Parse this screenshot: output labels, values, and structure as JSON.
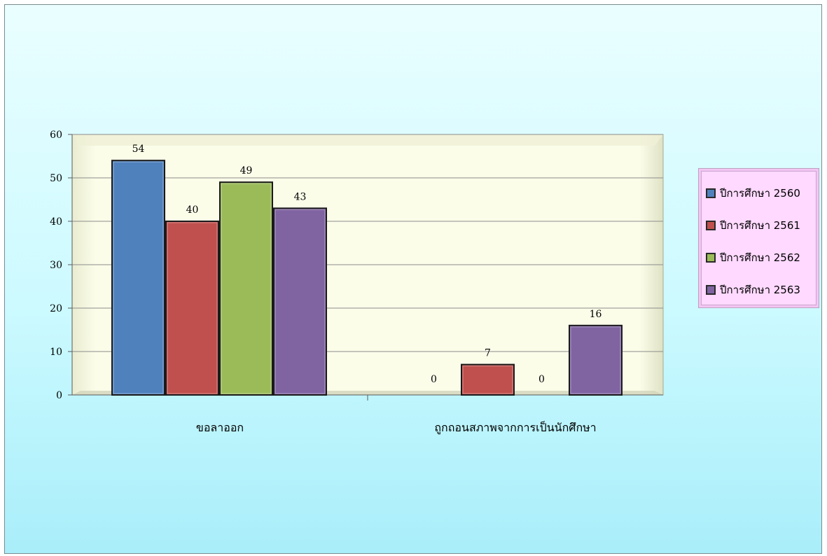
{
  "chart_data": {
    "type": "bar",
    "categories": [
      "ขอลาออก",
      "ถูกถอนสภาพจากการเป็นนักศึกษา"
    ],
    "series": [
      {
        "name": "ปีการศึกษา 2560",
        "values": [
          54,
          0
        ],
        "color": "#4f81bd"
      },
      {
        "name": "ปีการศึกษา 2561",
        "values": [
          40,
          7
        ],
        "color": "#c0504d"
      },
      {
        "name": "ปีการศึกษา 2562",
        "values": [
          49,
          0
        ],
        "color": "#9bbb59"
      },
      {
        "name": "ปีการศึกษา 2563",
        "values": [
          43,
          16
        ],
        "color": "#8064a2"
      }
    ],
    "y_ticks": [
      "0",
      "10",
      "20",
      "30",
      "40",
      "50",
      "60"
    ],
    "ylim": [
      0,
      60
    ],
    "grid": true,
    "legend_position": "right",
    "data_labels": true,
    "plot_background": "#fbfde9"
  }
}
